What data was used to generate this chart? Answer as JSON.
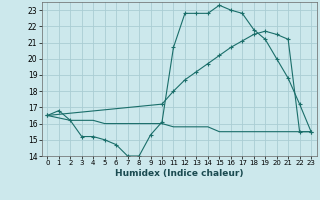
{
  "xlabel": "Humidex (Indice chaleur)",
  "background_color": "#cce8ec",
  "grid_color": "#aacdd4",
  "line_color": "#1a6e6a",
  "x_ticks": [
    0,
    1,
    2,
    3,
    4,
    5,
    6,
    7,
    8,
    9,
    10,
    11,
    12,
    13,
    14,
    15,
    16,
    17,
    18,
    19,
    20,
    21,
    22,
    23
  ],
  "ylim": [
    14.0,
    23.5
  ],
  "xlim": [
    -0.5,
    23.5
  ],
  "yticks": [
    14,
    15,
    16,
    17,
    18,
    19,
    20,
    21,
    22,
    23
  ],
  "line1_x": [
    0,
    1,
    2,
    3,
    4,
    5,
    6,
    7,
    8,
    9,
    10,
    11,
    12,
    13,
    14,
    15,
    16,
    17,
    18,
    19,
    20,
    21,
    22,
    23
  ],
  "line1_y": [
    16.5,
    16.8,
    16.2,
    15.2,
    15.2,
    15.0,
    14.7,
    14.0,
    14.0,
    15.3,
    16.1,
    20.7,
    22.8,
    22.8,
    22.8,
    23.3,
    23.0,
    22.8,
    21.8,
    21.2,
    20.0,
    18.8,
    17.2,
    15.5
  ],
  "line2_x": [
    0,
    10,
    11,
    12,
    13,
    14,
    15,
    16,
    17,
    18,
    19,
    20,
    21,
    22,
    23
  ],
  "line2_y": [
    16.5,
    17.2,
    18.0,
    18.7,
    19.2,
    19.7,
    20.2,
    20.7,
    21.1,
    21.5,
    21.7,
    21.5,
    21.2,
    15.5,
    15.5
  ],
  "line3_x": [
    0,
    2,
    3,
    4,
    5,
    6,
    7,
    8,
    9,
    10,
    11,
    12,
    13,
    14,
    15,
    16,
    17,
    18,
    19,
    20,
    21,
    22,
    23
  ],
  "line3_y": [
    16.5,
    16.2,
    16.2,
    16.2,
    16.0,
    16.0,
    16.0,
    16.0,
    16.0,
    16.0,
    15.8,
    15.8,
    15.8,
    15.8,
    15.5,
    15.5,
    15.5,
    15.5,
    15.5,
    15.5,
    15.5,
    15.5,
    15.5
  ]
}
